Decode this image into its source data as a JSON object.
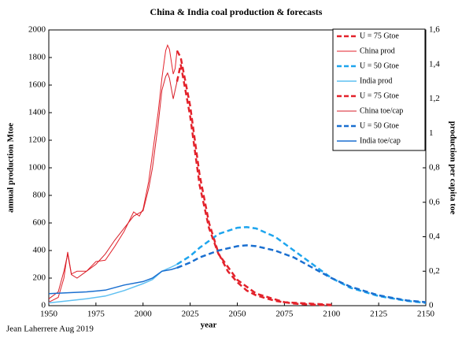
{
  "chart_data": {
    "type": "line",
    "title": "China & India coal production & forecasts",
    "y_label": "annual production Mtoe",
    "y2_label": "production per capita toe",
    "x_label": "year",
    "note": "Jean Laherrere Aug 2019",
    "xlim": [
      1950,
      2150
    ],
    "xticks": [
      1950,
      1975,
      2000,
      2025,
      2050,
      2075,
      2100,
      2125,
      2150
    ],
    "ylim": [
      0,
      2000
    ],
    "yticks": [
      0,
      200,
      400,
      600,
      800,
      1000,
      1200,
      1400,
      1600,
      1800,
      2000
    ],
    "y2lim": [
      0,
      1.6
    ],
    "y2ticks": [
      0,
      {
        "value": 0.2,
        "label": "0,2"
      },
      {
        "value": 0.4,
        "label": "0,4"
      },
      {
        "value": 0.6,
        "label": "0,6"
      },
      {
        "value": 0.8,
        "label": "0,8"
      },
      {
        "value": 1,
        "label": "1"
      },
      {
        "value": 1.2,
        "label": "1,2"
      },
      {
        "value": 1.4,
        "label": "1,4"
      },
      {
        "value": 1.6,
        "label": "1,6"
      }
    ],
    "grid": false,
    "legend": "upper right",
    "series": [
      {
        "name": "U = 75 Gtoe",
        "color": "#e3222b",
        "dash": true,
        "width": 2.5,
        "x": [
          2018,
          2020,
          2025,
          2030,
          2035,
          2040,
          2045,
          2050,
          2055,
          2060,
          2070,
          2080,
          2090,
          2100
        ],
        "values": [
          1850,
          1800,
          1450,
          950,
          600,
          380,
          250,
          170,
          110,
          75,
          35,
          15,
          7,
          3
        ]
      },
      {
        "name": "China prod",
        "color": "#e3222b",
        "dash": false,
        "width": 1,
        "x": [
          1950,
          1955,
          1958,
          1960,
          1962,
          1965,
          1970,
          1975,
          1980,
          1985,
          1990,
          1995,
          1998,
          2000,
          2003,
          2005,
          2008,
          2010,
          2012,
          2013,
          2014,
          2016,
          2017,
          2018
        ],
        "values": [
          25,
          60,
          200,
          390,
          230,
          250,
          250,
          320,
          330,
          430,
          540,
          680,
          650,
          700,
          900,
          1100,
          1400,
          1650,
          1850,
          1890,
          1860,
          1680,
          1720,
          1850
        ]
      },
      {
        "name": "U = 50 Gtoe",
        "color": "#1ea5ee",
        "dash": true,
        "width": 2.5,
        "x": [
          2018,
          2025,
          2030,
          2040,
          2050,
          2055,
          2060,
          2070,
          2080,
          2090,
          2100,
          2110,
          2125,
          2140,
          2150
        ],
        "values": [
          300,
          360,
          420,
          520,
          565,
          570,
          560,
          500,
          400,
          300,
          200,
          130,
          70,
          35,
          20
        ]
      },
      {
        "name": "India prod",
        "color": "#5fc0f2",
        "dash": false,
        "width": 1.5,
        "x": [
          1950,
          1960,
          1970,
          1980,
          1990,
          2000,
          2005,
          2010,
          2015,
          2018
        ],
        "values": [
          20,
          35,
          50,
          70,
          110,
          160,
          190,
          250,
          280,
          300
        ]
      },
      {
        "name": "U = 75 Gtoe",
        "color": "#e3222b",
        "dash": true,
        "width": 2.5,
        "axis": "y2",
        "x": [
          2018,
          2020,
          2025,
          2030,
          2035,
          2040,
          2050,
          2060,
          2075,
          2100
        ],
        "values": [
          1.3,
          1.4,
          1.1,
          0.7,
          0.45,
          0.3,
          0.15,
          0.07,
          0.02,
          0.005
        ]
      },
      {
        "name": "China toe/cap",
        "color": "#d71e28",
        "dash": false,
        "width": 1,
        "axis": "y2",
        "x": [
          1950,
          1955,
          1958,
          1960,
          1962,
          1965,
          1970,
          1975,
          1980,
          1985,
          1990,
          1995,
          2000,
          2003,
          2005,
          2008,
          2010,
          2012,
          2013,
          2014,
          2016,
          2018
        ],
        "values": [
          0.04,
          0.08,
          0.2,
          0.3,
          0.18,
          0.16,
          0.2,
          0.24,
          0.3,
          0.38,
          0.45,
          0.52,
          0.55,
          0.68,
          0.8,
          1.05,
          1.25,
          1.33,
          1.35,
          1.32,
          1.2,
          1.3
        ]
      },
      {
        "name": "U = 50 Gtoe",
        "color": "#1a6fd0",
        "dash": true,
        "width": 2.5,
        "axis": "y2",
        "x": [
          2018,
          2025,
          2030,
          2040,
          2050,
          2055,
          2060,
          2070,
          2080,
          2090,
          2100,
          2110,
          2125,
          2140,
          2150
        ],
        "values": [
          0.22,
          0.25,
          0.28,
          0.32,
          0.345,
          0.35,
          0.345,
          0.32,
          0.28,
          0.22,
          0.16,
          0.11,
          0.06,
          0.03,
          0.02
        ]
      },
      {
        "name": "India toe/cap",
        "color": "#1a6fd0",
        "dash": false,
        "width": 1.5,
        "axis": "y2",
        "x": [
          1950,
          1960,
          1970,
          1980,
          1990,
          2000,
          2005,
          2010,
          2015,
          2018
        ],
        "values": [
          0.07,
          0.075,
          0.08,
          0.09,
          0.12,
          0.14,
          0.16,
          0.2,
          0.21,
          0.22
        ]
      }
    ]
  }
}
